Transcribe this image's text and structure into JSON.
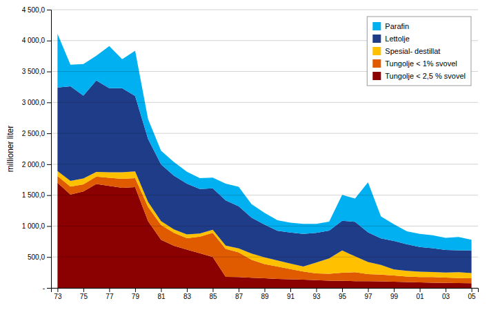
{
  "chart_data": {
    "type": "area",
    "stacked": true,
    "ylabel": "millioner liter",
    "x": [
      73,
      74,
      75,
      76,
      77,
      78,
      79,
      80,
      81,
      82,
      83,
      84,
      85,
      86,
      87,
      88,
      89,
      90,
      91,
      92,
      93,
      94,
      95,
      96,
      97,
      98,
      99,
      100,
      101,
      102,
      103,
      104,
      105
    ],
    "series": [
      {
        "name": "Tungolje < 2,5 % svovel",
        "color": "#8B0000",
        "values": [
          1700,
          1510,
          1560,
          1680,
          1650,
          1620,
          1630,
          1080,
          780,
          680,
          620,
          560,
          500,
          180,
          175,
          165,
          155,
          145,
          140,
          135,
          125,
          118,
          115,
          110,
          108,
          105,
          100,
          95,
          90,
          85,
          82,
          78,
          75
        ]
      },
      {
        "name": "Tungolje < 1% svovel",
        "color": "#E05A00",
        "values": [
          110,
          130,
          115,
          120,
          130,
          145,
          145,
          230,
          240,
          210,
          185,
          270,
          390,
          450,
          400,
          290,
          230,
          200,
          165,
          130,
          110,
          110,
          130,
          145,
          115,
          110,
          100,
          90,
          85,
          90,
          85,
          80,
          80
        ]
      },
      {
        "name": "Spesial- destillat",
        "color": "#FFC000",
        "values": [
          80,
          90,
          95,
          75,
          90,
          105,
          110,
          80,
          60,
          55,
          60,
          50,
          50,
          55,
          65,
          100,
          110,
          100,
          90,
          80,
          175,
          250,
          360,
          255,
          195,
          155,
          100,
          90,
          88,
          82,
          82,
          95,
          85
        ]
      },
      {
        "name": "Lettolje",
        "color": "#1F3C88",
        "values": [
          1350,
          1530,
          1340,
          1480,
          1360,
          1360,
          1220,
          1020,
          920,
          870,
          820,
          720,
          670,
          730,
          680,
          580,
          530,
          480,
          500,
          530,
          480,
          450,
          480,
          560,
          480,
          430,
          460,
          430,
          400,
          385,
          365,
          355,
          365
        ]
      },
      {
        "name": "Parafin",
        "color": "#00B0F0",
        "values": [
          870,
          350,
          510,
          400,
          680,
          470,
          730,
          320,
          220,
          220,
          195,
          175,
          175,
          270,
          315,
          220,
          190,
          170,
          160,
          160,
          145,
          145,
          420,
          375,
          810,
          355,
          270,
          210,
          210,
          210,
          195,
          215,
          175
        ]
      }
    ],
    "xlim": [
      72.5,
      105.5
    ],
    "xticks": [
      73,
      75,
      77,
      79,
      81,
      83,
      85,
      87,
      89,
      91,
      93,
      95,
      97,
      99,
      {
        "value": 101,
        "label": "01"
      },
      {
        "value": 103,
        "label": "03"
      },
      {
        "value": 105,
        "label": "05"
      }
    ],
    "ylim": [
      0,
      4500
    ],
    "yticks": [
      {
        "value": 0,
        "label": "-"
      },
      {
        "value": 500,
        "label": "500,0"
      },
      {
        "value": 1000,
        "label": "1 000,0"
      },
      {
        "value": 1500,
        "label": "1 500,0"
      },
      {
        "value": 2000,
        "label": "2 000,0"
      },
      {
        "value": 2500,
        "label": "2 500,0"
      },
      {
        "value": 3000,
        "label": "3 000,0"
      },
      {
        "value": 3500,
        "label": "3 500,0"
      },
      {
        "value": 4000,
        "label": "4 000,0"
      },
      {
        "value": 4500,
        "label": "4 500,0"
      }
    ],
    "grid": true,
    "legend": "upper right"
  }
}
